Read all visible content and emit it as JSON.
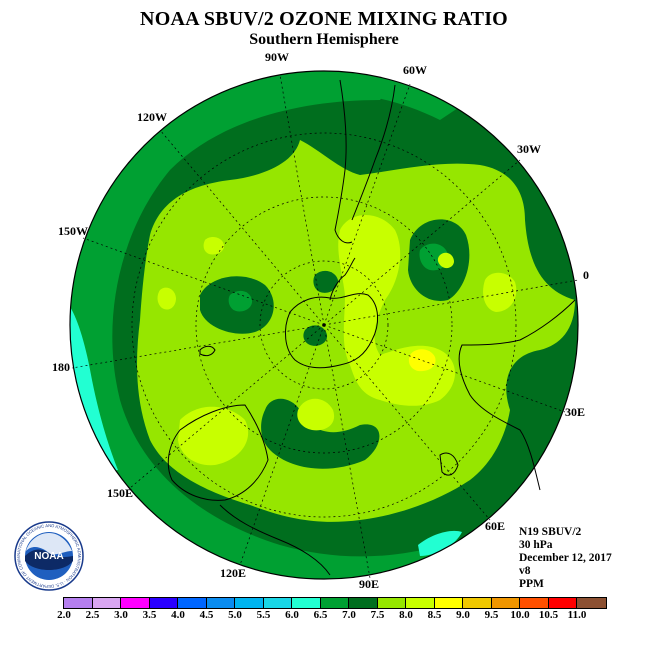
{
  "title": "NOAA SBUV/2 OZONE MIXING RATIO",
  "subtitle": "Southern Hemisphere",
  "longitude_labels": [
    "90W",
    "60W",
    "30W",
    "0",
    "30E",
    "60E",
    "90E",
    "120E",
    "150E",
    "180",
    "150W",
    "120W"
  ],
  "meta": {
    "instrument": "N19 SBUV/2",
    "pressure": "30 hPa",
    "date": "December 12, 2017",
    "version": "v8",
    "units": "PPM"
  },
  "logo": {
    "text": "NOAA",
    "ring_text": "NATIONAL OCEANIC AND ATMOSPHERIC ADMINISTRATION · U.S. DEPARTMENT OF COMMERCE"
  },
  "colorbar": {
    "ticks": [
      "2.0",
      "2.5",
      "3.0",
      "3.5",
      "4.0",
      "4.5",
      "5.0",
      "5.5",
      "6.0",
      "6.5",
      "7.0",
      "7.5",
      "8.0",
      "8.5",
      "9.0",
      "9.5",
      "10.0",
      "10.5",
      "11.0"
    ],
    "colors": [
      "#b57fef",
      "#d9a6f2",
      "#ff00ff",
      "#2a00ff",
      "#0066ff",
      "#0a8cf0",
      "#00b4f0",
      "#19d6e6",
      "#22ffd2",
      "#00a032",
      "#006e1e",
      "#96e600",
      "#c8ff00",
      "#ffff00",
      "#f0c800",
      "#f09600",
      "#ff5000",
      "#ff0000",
      "#8c5032"
    ]
  }
}
